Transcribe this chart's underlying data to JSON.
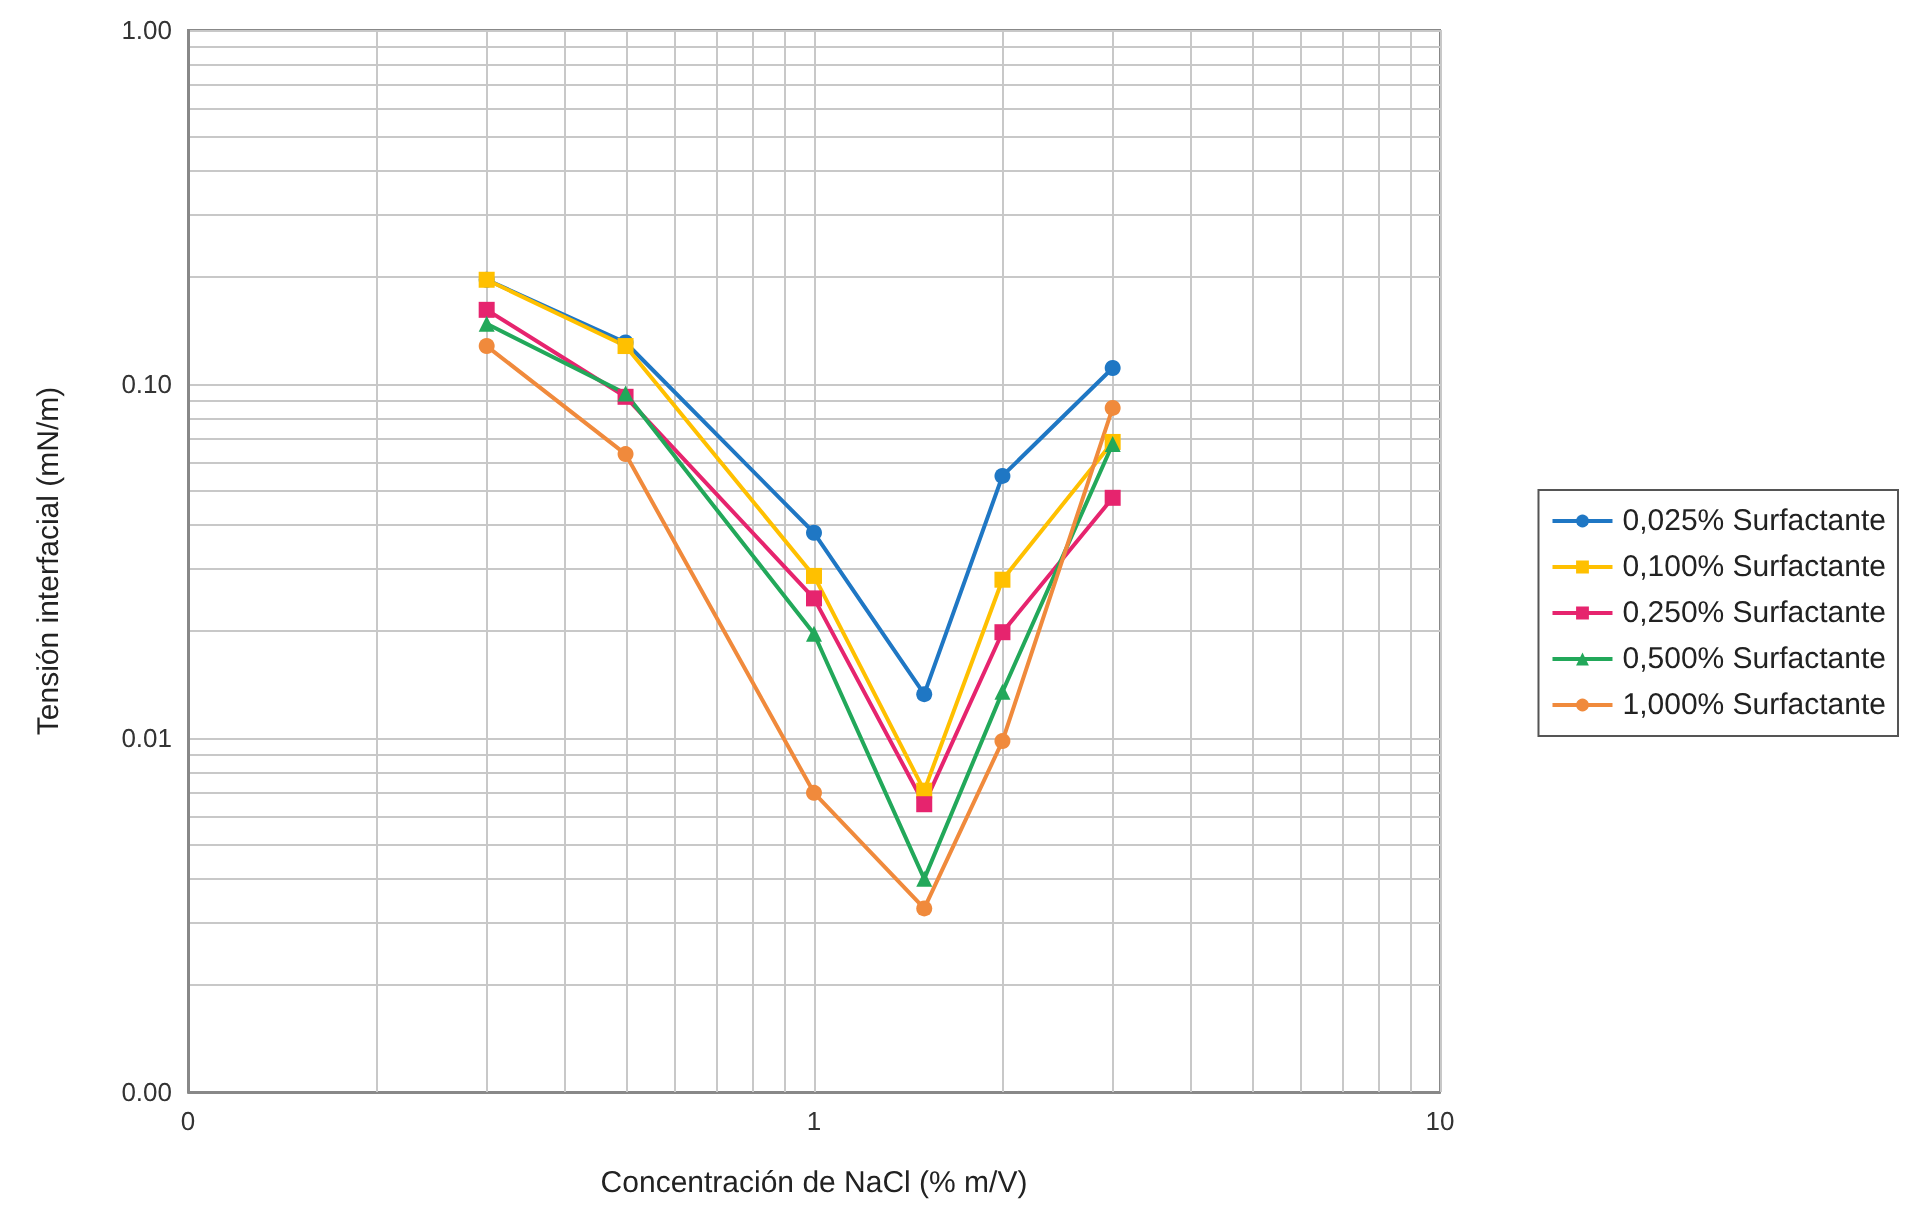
{
  "chart_data": {
    "type": "line",
    "xlabel": "Concentración de NaCl (% m/V)",
    "ylabel": "Tensión interfacial (mN/m)",
    "log": "xy",
    "grid": true,
    "legend": "right",
    "line_style": "solid",
    "x": [
      0.3,
      0.5,
      1,
      1.5,
      2,
      3
    ],
    "xlim": [
      0.1,
      10
    ],
    "xticks": [
      {
        "value": 0.1,
        "label": "0"
      },
      {
        "value": 0.2,
        "label": null
      },
      {
        "value": 0.3,
        "label": null
      },
      {
        "value": 0.4,
        "label": null
      },
      {
        "value": 0.5,
        "label": null
      },
      {
        "value": 0.6,
        "label": null
      },
      {
        "value": 0.7,
        "label": null
      },
      {
        "value": 0.8,
        "label": null
      },
      {
        "value": 0.9,
        "label": null
      },
      1,
      {
        "value": 2,
        "label": null
      },
      {
        "value": 3,
        "label": null
      },
      {
        "value": 4,
        "label": null
      },
      {
        "value": 5,
        "label": null
      },
      {
        "value": 6,
        "label": null
      },
      {
        "value": 7,
        "label": null
      },
      {
        "value": 8,
        "label": null
      },
      {
        "value": 9,
        "label": null
      },
      10
    ],
    "ylim": [
      0.001,
      1
    ],
    "yticks": [
      {
        "value": 0.001,
        "label": "0.00"
      },
      {
        "value": 0.002,
        "label": null
      },
      {
        "value": 0.003,
        "label": null
      },
      {
        "value": 0.004,
        "label": null
      },
      {
        "value": 0.005,
        "label": null
      },
      {
        "value": 0.006,
        "label": null
      },
      {
        "value": 0.007,
        "label": null
      },
      {
        "value": 0.008,
        "label": null
      },
      {
        "value": 0.009,
        "label": null
      },
      {
        "value": 0.01,
        "label": "0.01"
      },
      {
        "value": 0.02,
        "label": null
      },
      {
        "value": 0.03,
        "label": null
      },
      {
        "value": 0.04,
        "label": null
      },
      {
        "value": 0.05,
        "label": null
      },
      {
        "value": 0.06,
        "label": null
      },
      {
        "value": 0.07,
        "label": null
      },
      {
        "value": 0.08,
        "label": null
      },
      {
        "value": 0.09,
        "label": null
      },
      {
        "value": 0.1,
        "label": "0.10"
      },
      {
        "value": 0.2,
        "label": null
      },
      {
        "value": 0.3,
        "label": null
      },
      {
        "value": 0.4,
        "label": null
      },
      {
        "value": 0.5,
        "label": null
      },
      {
        "value": 0.6,
        "label": null
      },
      {
        "value": 0.7,
        "label": null
      },
      {
        "value": 0.8,
        "label": null
      },
      {
        "value": 0.9,
        "label": null
      },
      {
        "value": 1,
        "label": "1.00"
      }
    ],
    "series": [
      {
        "name": "0,025% Surfactante",
        "color": "#1f77c4",
        "marker": "circle",
        "values": [
          0.197,
          0.131,
          0.038,
          0.0133,
          0.055,
          0.111
        ]
      },
      {
        "name": "0,100% Surfactante",
        "color": "#ffc000",
        "marker": "square",
        "values": [
          0.197,
          0.128,
          0.0287,
          0.0071,
          0.028,
          0.0686
        ]
      },
      {
        "name": "0,250% Surfactante",
        "color": "#e6246e",
        "marker": "square",
        "values": [
          0.162,
          0.092,
          0.0248,
          0.0065,
          0.0199,
          0.0477
        ]
      },
      {
        "name": "0,500% Surfactante",
        "color": "#22a85a",
        "marker": "triangle",
        "values": [
          0.148,
          0.094,
          0.0197,
          0.004,
          0.0135,
          0.0677
        ]
      },
      {
        "name": "1,000% Surfactante",
        "color": "#f08a3c",
        "marker": "circle",
        "values": [
          0.128,
          0.0634,
          0.007,
          0.0033,
          0.0098,
          0.0856
        ]
      }
    ]
  }
}
